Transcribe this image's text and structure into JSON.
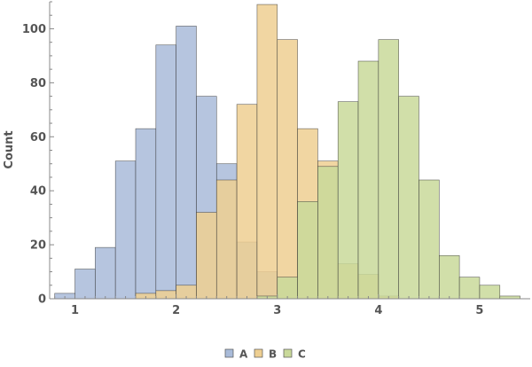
{
  "chart_data": {
    "type": "bar",
    "subtype": "overlapping-histogram",
    "title": "",
    "xlabel": "",
    "ylabel": "Count",
    "xlim": [
      0.75,
      5.5
    ],
    "ylim": [
      0,
      110
    ],
    "bin_width": 0.2,
    "x_ticks": [
      1,
      2,
      3,
      4,
      5
    ],
    "y_ticks": [
      0,
      20,
      40,
      60,
      80,
      100
    ],
    "grid": false,
    "legend_position": "bottom-center",
    "series": [
      {
        "name": "A",
        "color": "#a9bbd9",
        "bins": [
          {
            "start": 0.8,
            "value": 2
          },
          {
            "start": 1.0,
            "value": 11
          },
          {
            "start": 1.2,
            "value": 19
          },
          {
            "start": 1.4,
            "value": 51
          },
          {
            "start": 1.6,
            "value": 63
          },
          {
            "start": 1.8,
            "value": 94
          },
          {
            "start": 2.0,
            "value": 101
          },
          {
            "start": 2.2,
            "value": 75
          },
          {
            "start": 2.4,
            "value": 50
          },
          {
            "start": 2.6,
            "value": 21
          },
          {
            "start": 2.8,
            "value": 10
          },
          {
            "start": 3.0,
            "value": 3
          }
        ]
      },
      {
        "name": "B",
        "color": "#eecf92",
        "bins": [
          {
            "start": 1.6,
            "value": 2
          },
          {
            "start": 1.8,
            "value": 3
          },
          {
            "start": 2.0,
            "value": 5
          },
          {
            "start": 2.2,
            "value": 32
          },
          {
            "start": 2.4,
            "value": 44
          },
          {
            "start": 2.6,
            "value": 72
          },
          {
            "start": 2.8,
            "value": 109
          },
          {
            "start": 3.0,
            "value": 96
          },
          {
            "start": 3.2,
            "value": 63
          },
          {
            "start": 3.4,
            "value": 51
          },
          {
            "start": 3.6,
            "value": 13
          },
          {
            "start": 3.8,
            "value": 9
          },
          {
            "start": 4.0,
            "value": 1
          }
        ]
      },
      {
        "name": "C",
        "color": "#c9d99a",
        "bins": [
          {
            "start": 2.8,
            "value": 1
          },
          {
            "start": 3.0,
            "value": 8
          },
          {
            "start": 3.2,
            "value": 36
          },
          {
            "start": 3.4,
            "value": 49
          },
          {
            "start": 3.6,
            "value": 73
          },
          {
            "start": 3.8,
            "value": 88
          },
          {
            "start": 4.0,
            "value": 96
          },
          {
            "start": 4.2,
            "value": 75
          },
          {
            "start": 4.4,
            "value": 44
          },
          {
            "start": 4.6,
            "value": 16
          },
          {
            "start": 4.8,
            "value": 8
          },
          {
            "start": 5.0,
            "value": 5
          },
          {
            "start": 5.2,
            "value": 1
          }
        ]
      }
    ]
  }
}
